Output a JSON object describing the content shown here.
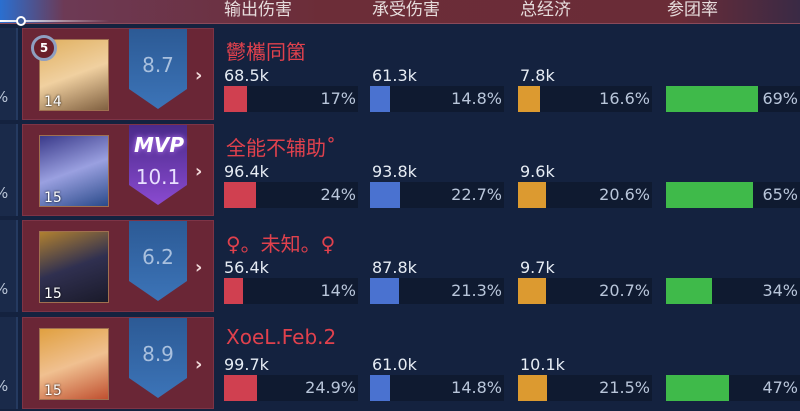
{
  "header": {
    "columns": [
      "输出伤害",
      "承受伤害",
      "总经济",
      "参团率"
    ]
  },
  "colors": {
    "damage": "#d04050",
    "taken": "#4a72d0",
    "gold": "#dc9a30",
    "participation": "#3fba4a",
    "name": "#e0414d"
  },
  "players": [
    {
      "name": "鬱欈同箘",
      "level": "14",
      "rank": "5",
      "score": "8.7",
      "mvp": false,
      "mvp_label": "",
      "damage": "68.5k",
      "damage_pct": "17%",
      "taken": "61.3k",
      "taken_pct": "14.8%",
      "gold": "7.8k",
      "gold_pct": "16.6%",
      "participation_pct": "69%",
      "d": 17,
      "t": 14.8,
      "g": 16.6,
      "p": 69,
      "edge": "%"
    },
    {
      "name": "全能不辅助˚",
      "level": "15",
      "score": "10.1",
      "mvp": true,
      "mvp_label": "MVP",
      "damage": "96.4k",
      "damage_pct": "24%",
      "taken": "93.8k",
      "taken_pct": "22.7%",
      "gold": "9.6k",
      "gold_pct": "20.6%",
      "participation_pct": "65%",
      "d": 24,
      "t": 22.7,
      "g": 20.6,
      "p": 65,
      "edge": "%"
    },
    {
      "name": "♀。未知。♀",
      "level": "15",
      "score": "6.2",
      "mvp": false,
      "mvp_label": "",
      "damage": "56.4k",
      "damage_pct": "14%",
      "taken": "87.8k",
      "taken_pct": "21.3%",
      "gold": "9.7k",
      "gold_pct": "20.7%",
      "participation_pct": "34%",
      "d": 14,
      "t": 21.3,
      "g": 20.7,
      "p": 34,
      "edge": "%"
    },
    {
      "name": "XoeL.Feb.2",
      "level": "15",
      "score": "8.9",
      "mvp": false,
      "mvp_label": "",
      "damage": "99.7k",
      "damage_pct": "24.9%",
      "taken": "61.0k",
      "taken_pct": "14.8%",
      "gold": "10.1k",
      "gold_pct": "21.5%",
      "participation_pct": "47%",
      "d": 24.9,
      "t": 14.8,
      "g": 21.5,
      "p": 47,
      "edge": "%"
    }
  ]
}
